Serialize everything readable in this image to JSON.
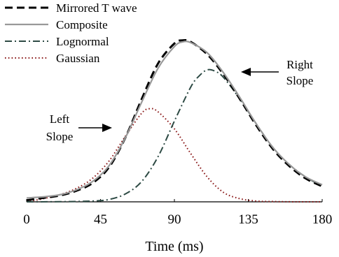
{
  "chart_data": {
    "type": "line",
    "xlabel": "Time (ms)",
    "ylabel": "",
    "xlim": [
      0,
      180
    ],
    "ylim": [
      0,
      1.12
    ],
    "xticks": [
      0,
      45,
      90,
      135,
      180
    ],
    "xtick_labels": [
      "0",
      "45",
      "90",
      "135",
      "180"
    ],
    "grid": false,
    "legend_position": "top-left",
    "series": [
      {
        "name": "Mirrored T wave",
        "color": "#000000",
        "style": "dashed",
        "x": [
          0,
          10,
          20,
          30,
          40,
          50,
          60,
          70,
          80,
          90,
          95,
          100,
          110,
          120,
          130,
          140,
          150,
          160,
          170,
          180
        ],
        "y": [
          0.01,
          0.025,
          0.04,
          0.07,
          0.12,
          0.22,
          0.41,
          0.66,
          0.89,
          1.02,
          1.04,
          1.03,
          0.95,
          0.82,
          0.66,
          0.49,
          0.34,
          0.23,
          0.15,
          0.1
        ]
      },
      {
        "name": "Composite",
        "color": "#999999",
        "style": "solid",
        "x": [
          0,
          10,
          20,
          30,
          40,
          50,
          60,
          70,
          80,
          90,
          95,
          100,
          110,
          120,
          130,
          140,
          150,
          160,
          170,
          180
        ],
        "y": [
          0.025,
          0.032,
          0.045,
          0.076,
          0.13,
          0.23,
          0.41,
          0.64,
          0.86,
          1.0,
          1.03,
          1.025,
          0.96,
          0.83,
          0.67,
          0.5,
          0.35,
          0.24,
          0.16,
          0.11
        ]
      },
      {
        "name": "Lognormal",
        "color": "#2d4a44",
        "style": "dashdot",
        "x": [
          0,
          20,
          40,
          50,
          60,
          70,
          80,
          90,
          100,
          105,
          110,
          115,
          120,
          130,
          140,
          150,
          160,
          170,
          180
        ],
        "y": [
          0.0,
          0.001,
          0.005,
          0.015,
          0.05,
          0.13,
          0.29,
          0.52,
          0.74,
          0.81,
          0.85,
          0.84,
          0.8,
          0.66,
          0.5,
          0.35,
          0.24,
          0.16,
          0.1
        ]
      },
      {
        "name": "Gaussian",
        "color": "#8b1a1a",
        "style": "dotted",
        "x": [
          0,
          10,
          20,
          30,
          40,
          50,
          60,
          70,
          75,
          80,
          90,
          100,
          110,
          120,
          130,
          140,
          150,
          165,
          180
        ],
        "y": [
          0.0,
          0.02,
          0.045,
          0.085,
          0.15,
          0.26,
          0.42,
          0.57,
          0.6,
          0.58,
          0.47,
          0.31,
          0.16,
          0.06,
          0.02,
          0.005,
          0.002,
          0.0,
          0.0
        ]
      }
    ],
    "annotations": [
      {
        "text_lines": [
          "Right",
          "Slope"
        ],
        "target": [
          114,
          0.84
        ]
      },
      {
        "text_lines": [
          "Left",
          "Slope"
        ],
        "target": [
          49,
          0.45
        ]
      }
    ]
  }
}
